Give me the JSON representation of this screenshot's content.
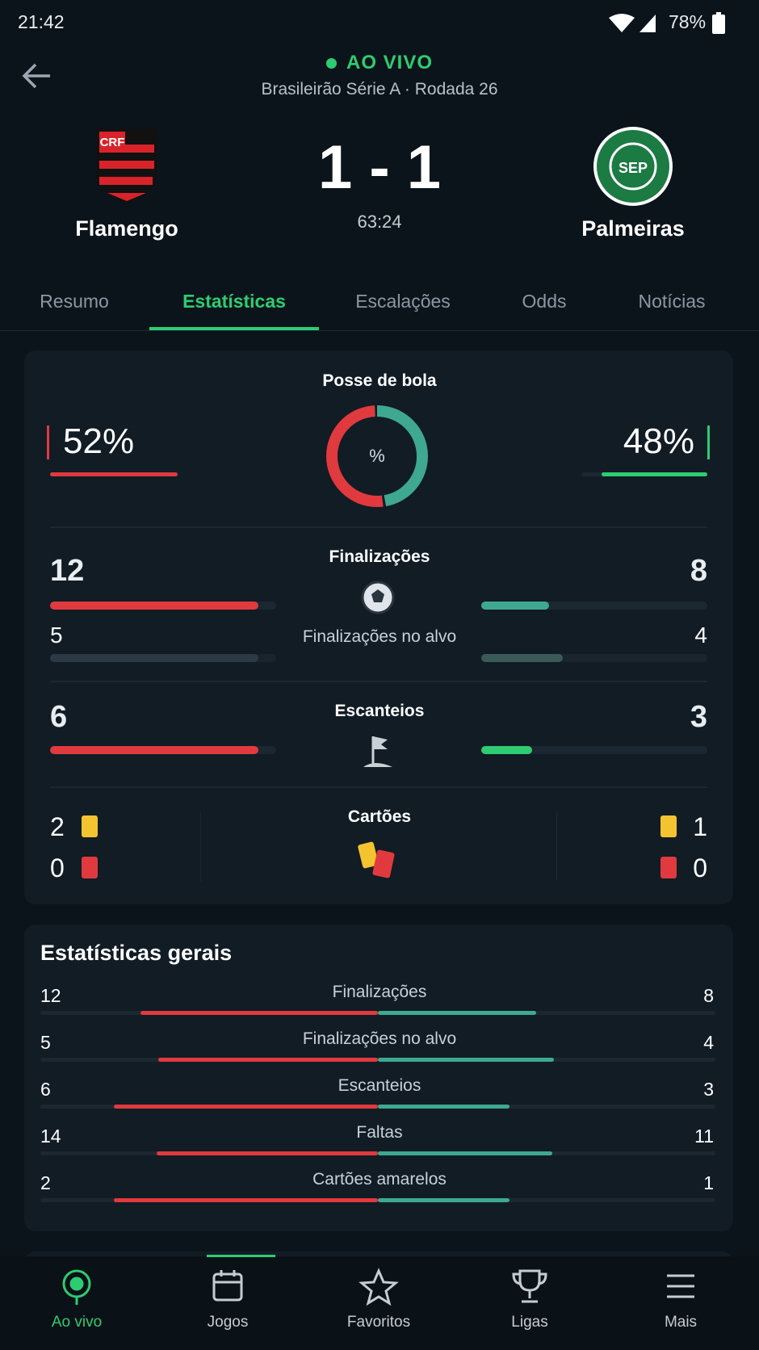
{
  "status_bar": {
    "time": "21:42",
    "battery": "78%"
  },
  "match": {
    "status": "AO VIVO",
    "competition": "Brasileirão Série A · Rodada 26",
    "home": "Flamengo",
    "away": "Palmeiras",
    "score": "1 - 1",
    "clock": "63:24"
  },
  "tabs": [
    "Resumo",
    "Estatísticas",
    "Escalações",
    "Odds",
    "Notícias"
  ],
  "active_tab": 1,
  "possession": {
    "title": "Posse de bola",
    "center": "%",
    "home": 52,
    "away": 48,
    "value_labels": {
      "home": "52%",
      "away": "48%"
    }
  },
  "featured": [
    {
      "title": "Finalizações",
      "home": 12,
      "away": 8,
      "sub": {
        "title": "Finalizações no alvo",
        "home": 5,
        "away": 4
      }
    },
    {
      "title": "Escanteios",
      "home": 6,
      "away": 3
    }
  ],
  "cards": {
    "title": "Cartões",
    "home_yellow": 2,
    "home_red": 0,
    "away_yellow": 1,
    "away_red": 0
  },
  "general": {
    "title": "Estatísticas gerais",
    "rows": [
      {
        "label": "Finalizações",
        "home": 12,
        "away": 8
      },
      {
        "label": "Finalizações no alvo",
        "home": 5,
        "away": 4
      },
      {
        "label": "Escanteios",
        "home": 6,
        "away": 3
      },
      {
        "label": "Faltas",
        "home": 14,
        "away": 11
      },
      {
        "label": "Cartões amarelos",
        "home": 2,
        "away": 1
      }
    ]
  },
  "nav": [
    "Ao vivo",
    "Jogos",
    "Favoritos",
    "Ligas",
    "Mais"
  ],
  "active_nav": 0
}
